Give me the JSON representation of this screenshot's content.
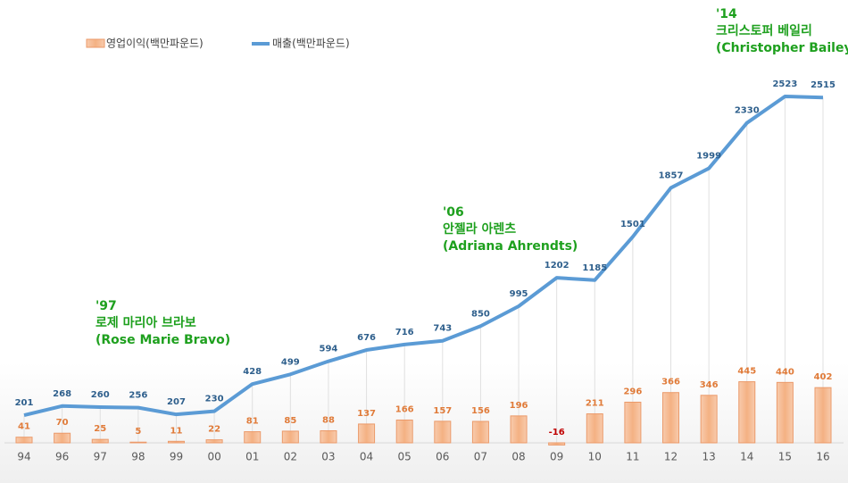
{
  "chart_data": {
    "type": "bar_line",
    "categories": [
      "94",
      "96",
      "97",
      "98",
      "99",
      "00",
      "01",
      "02",
      "03",
      "04",
      "05",
      "06",
      "07",
      "08",
      "09",
      "10",
      "11",
      "12",
      "13",
      "14",
      "15",
      "16"
    ],
    "series": [
      {
        "name": "영업이익(백만파운드)",
        "type": "bar",
        "color": "#f4b183",
        "values": [
          41,
          70,
          25,
          5,
          11,
          22,
          81,
          85,
          88,
          137,
          166,
          157,
          156,
          196,
          -16,
          211,
          296,
          366,
          346,
          445,
          440,
          402
        ]
      },
      {
        "name": "매출(백만파운드)",
        "type": "line",
        "color": "#5b9bd5",
        "values": [
          201,
          268,
          260,
          256,
          207,
          230,
          428,
          499,
          594,
          676,
          716,
          743,
          850,
          995,
          1202,
          1185,
          1501,
          1857,
          1999,
          2330,
          2523,
          2515
        ]
      }
    ],
    "negative_label_color": "#c00000",
    "annotations": [
      {
        "lines": [
          "'97",
          "로제 마리아 브라보",
          "(Rose Marie Bravo)"
        ]
      },
      {
        "lines": [
          "'06",
          "안젤라 아렌츠",
          "(Adriana Ahrendts)"
        ]
      },
      {
        "lines": [
          "'14",
          "크리스토퍼 베일리",
          "(Christopher Bailey"
        ]
      }
    ]
  }
}
